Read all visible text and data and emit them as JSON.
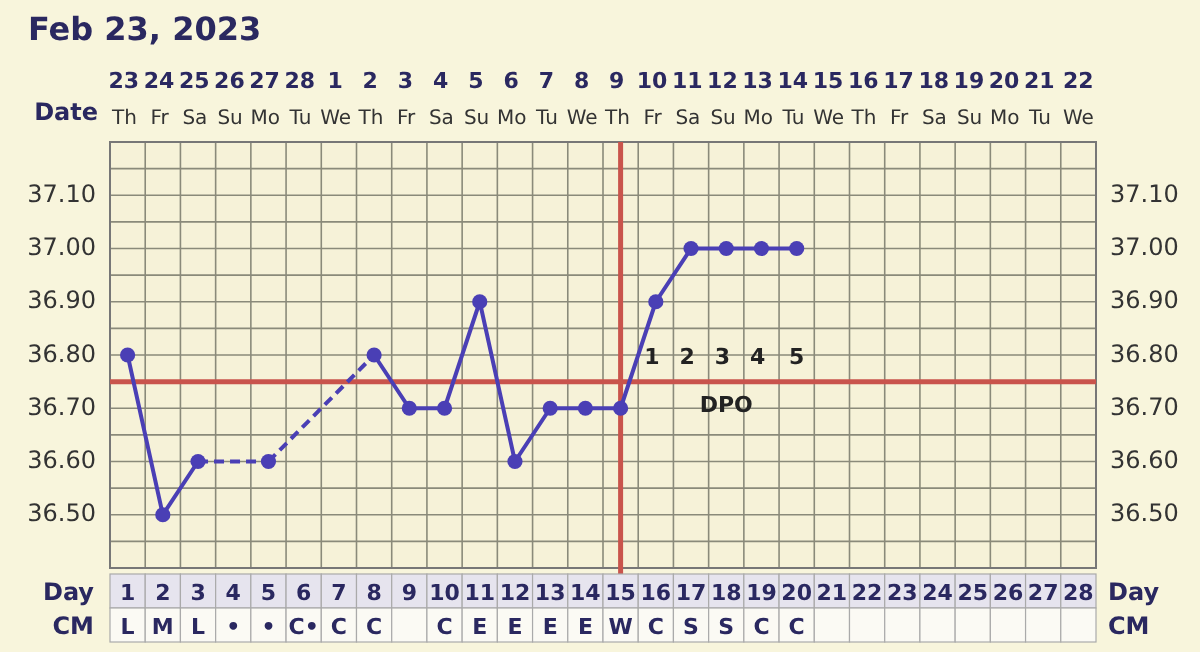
{
  "chart_data": {
    "type": "line",
    "title": "Feb 23, 2023",
    "categories": [
      "1\nL",
      "2\nM",
      "3\nL",
      "4\n•",
      "5\n•",
      "6\nC•",
      "7\nC",
      "8\nC",
      "9\n",
      "10\nC",
      "11\nE",
      "12\nE",
      "13\nE",
      "14\nE",
      "15\nW",
      "16\nC",
      "17\nS",
      "18\nS",
      "19\nC",
      "20\nC",
      "21\n",
      "22\n",
      "23\n",
      "24\n",
      "25\n",
      "26\n",
      "27\n",
      "28\n"
    ],
    "series": [
      {
        "color": "#4a3fb5",
        "values": [
          36.8,
          36.5,
          36.6,
          null,
          36.6,
          null,
          null,
          36.8,
          36.7,
          36.7,
          36.9,
          36.6,
          36.7,
          36.7,
          36.7,
          36.9,
          37.0,
          37.0,
          37.0,
          37.0,
          null,
          null,
          null,
          null,
          null,
          null,
          null,
          null
        ]
      }
    ],
    "ylim": [
      36.4,
      37.2
    ],
    "yticks": [
      {
        "value": 36.45,
        "label": null
      },
      {
        "value": 36.5,
        "label": "36.50"
      },
      {
        "value": 36.55,
        "label": null
      },
      {
        "value": 36.6,
        "label": "36.60"
      },
      {
        "value": 36.65,
        "label": null
      },
      {
        "value": 36.7,
        "label": "36.70"
      },
      {
        "value": 36.8,
        "label": "36.80"
      },
      {
        "value": 36.85,
        "label": null
      },
      {
        "value": 36.9,
        "label": "36.90"
      },
      {
        "value": 36.95,
        "label": null
      },
      {
        "value": 37.0,
        "label": "37.00"
      },
      {
        "value": 37.05,
        "label": null
      },
      {
        "value": 37.1,
        "label": "37.10"
      },
      {
        "value": 37.15,
        "label": null
      }
    ],
    "grid": true,
    "marker": "circle",
    "ref_lines": [
      {
        "axis": "y",
        "value": 36.75,
        "color": "#c9544c"
      },
      {
        "axis": "x",
        "value": "15\nW",
        "color": "#c9544c"
      }
    ],
    "annotations": [
      "Date",
      "Day",
      "CM",
      "DPO",
      "1 2 3 4 5",
      "23 24 25 26 27 28 1 2 3 4 5 6 7 8 9 10 11 12 13 14 15 16 17 18 19 20 21 22",
      "Th Fr Sa Su Mo Tu We Th Fr Sa Su Mo Tu We Th Fr Sa Su Mo Tu We Th Fr Sa Su Mo Tu We"
    ]
  }
}
